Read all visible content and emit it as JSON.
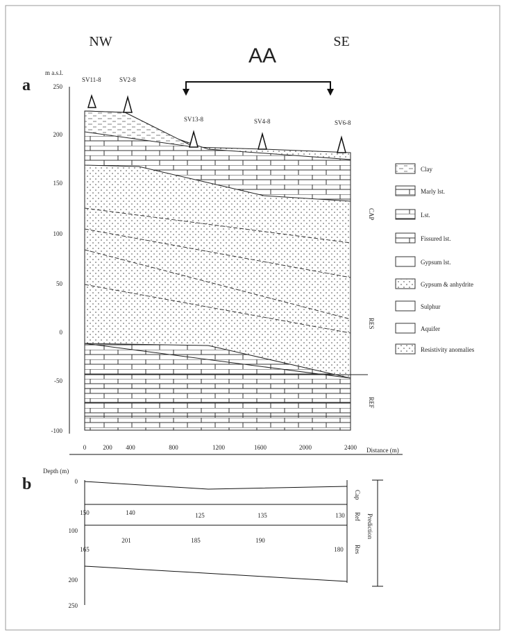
{
  "header": {
    "left": "NW",
    "right": "SE",
    "section": "AA"
  },
  "panel_a": {
    "label": "a",
    "axis_title": "m a.s.l.",
    "y_labels": [
      "250",
      "200",
      "150",
      "100",
      "50",
      "0",
      "-50",
      "-100"
    ],
    "wells": [
      "SV11-8",
      "SV2-8",
      "SV13-8",
      "SV4-8",
      "SV6-8"
    ],
    "x_labels": [
      "0",
      "200",
      "400",
      "800",
      "1200",
      "1600",
      "2000",
      "2400"
    ],
    "x_title": "Distance (m)",
    "units": [
      "CAP",
      "RES",
      "REF"
    ]
  },
  "legend": [
    "Clay",
    "Marly lst.",
    "Lst.",
    "Fissured lst.",
    "Gypsum lst.",
    "Gypsum & anhydrite",
    "Sulphur",
    "Aquifer",
    "Resistivity anomalies"
  ],
  "panel_b": {
    "label": "b",
    "axis_title": "Depth (m)",
    "y_labels": [
      "0",
      "100",
      "200",
      "250"
    ],
    "upper_values": [
      "150",
      "140",
      "125",
      "135",
      "130"
    ],
    "lower_values": [
      "165",
      "201",
      "185",
      "190",
      "180"
    ],
    "units": [
      "Cap",
      "Ref",
      "Res"
    ],
    "bracket": "Prediction"
  }
}
